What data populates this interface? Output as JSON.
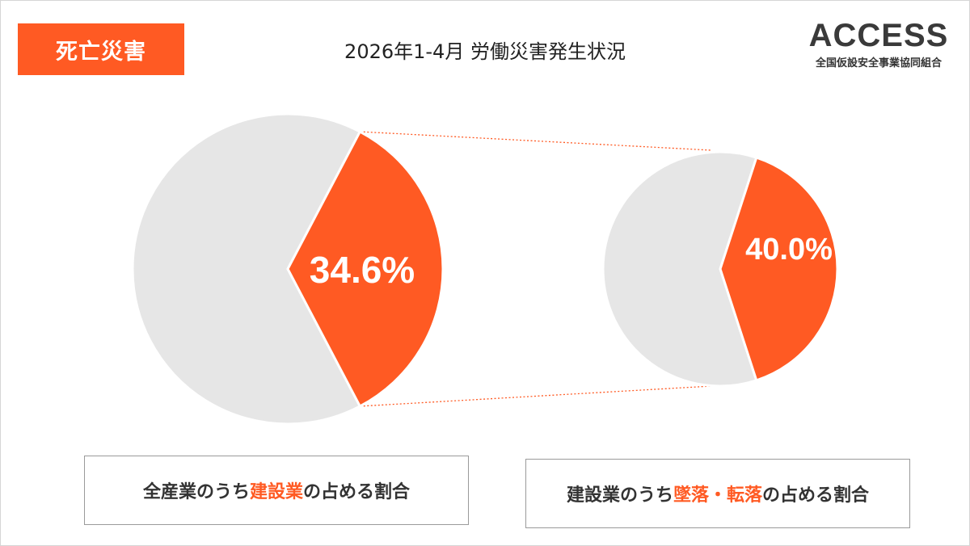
{
  "badge": {
    "label": "死亡災害",
    "color": "#ff5a23"
  },
  "title": "2026年1-4月 労働災害発生状況",
  "logo": {
    "word": "ACCESS",
    "subtitle": "全国仮設安全事業協同組合"
  },
  "colors": {
    "accent": "#ff5a23",
    "remainder": "#e6e6e6",
    "connector": "#ff5a23"
  },
  "chart_data": [
    {
      "type": "pie",
      "slices": [
        {
          "label": "建設業",
          "value": 34.6,
          "color": "#ff5a23"
        },
        {
          "label": "",
          "value": 65.4,
          "color": "#e6e6e6"
        }
      ],
      "data_label": "34.6%"
    },
    {
      "type": "pie",
      "slices": [
        {
          "label": "墜落・転落",
          "value": 40.0,
          "color": "#ff5a23"
        },
        {
          "label": "",
          "value": 60.0,
          "color": "#e6e6e6"
        }
      ],
      "data_label": "40.0%"
    }
  ],
  "captions": [
    {
      "pre": "全産業のうち",
      "highlight": "建設業",
      "post": "の占める割合"
    },
    {
      "pre": "建設業のうち",
      "highlight": "墜落・転落",
      "post": "の占める割合"
    }
  ]
}
